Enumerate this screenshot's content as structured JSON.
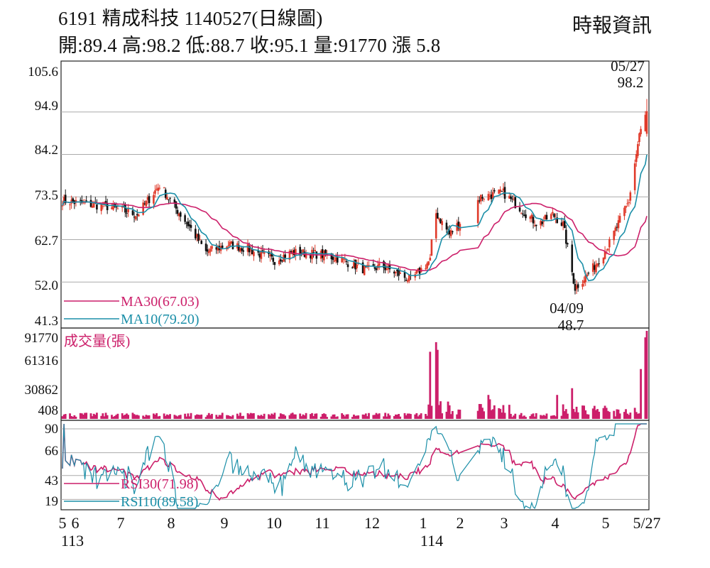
{
  "header": {
    "title": "6191  精成科技 1140527(日線圖)",
    "stats": "開:89.4 高:98.2 低:88.7 收:95.1 量:91770 漲 5.8",
    "brand": "時報資訊"
  },
  "price_panel": {
    "y_ticks": [
      "105.6",
      "94.9",
      "84.2",
      "73.5",
      "62.7",
      "52.0",
      "41.3"
    ],
    "high_annotation": {
      "date": "05/27",
      "value": "98.2"
    },
    "low_annotation": {
      "date": "04/09",
      "value": "48.7"
    },
    "legend": {
      "ma30": "MA30(67.03)",
      "ma10": "MA10(79.20)"
    }
  },
  "volume_panel": {
    "title": "成交量(張)",
    "y_ticks": [
      "91770",
      "61316",
      "30862",
      "408"
    ]
  },
  "rsi_panel": {
    "y_ticks": [
      "90",
      "66",
      "43",
      "19"
    ],
    "legend": {
      "rsi30": "RSI30(71.98)",
      "rsi10": "RSI10(89.58)"
    }
  },
  "x_axis": {
    "months": [
      "5",
      "6",
      "7",
      "8",
      "9",
      "10",
      "11",
      "12",
      "1",
      "2",
      "3",
      "4",
      "5",
      "5/27"
    ],
    "years": [
      "113",
      "114"
    ]
  },
  "colors": {
    "up_candle": "#e03a2a",
    "down_candle": "#111111",
    "ma30_line": "#cc1f6a",
    "ma10_line": "#1b8fa8",
    "volume_bar": "#cc1f6a",
    "rsi30_line": "#cc1f6a",
    "rsi10_line": "#1b8fa8",
    "grid": "#aaaaaa"
  },
  "chart_data": [
    {
      "type": "candlestick",
      "title": "6191  精成科技 1140527(日線圖)",
      "ylim": [
        41.3,
        105.6
      ],
      "close_profile": [
        [
          "113/05",
          72.5
        ],
        [
          "113/06",
          71.0
        ],
        [
          "113/06/20",
          69.0
        ],
        [
          "113/07/05",
          76.5
        ],
        [
          "113/07/15",
          71.0
        ],
        [
          "113/07/25",
          66.0
        ],
        [
          "113/08/05",
          59.5
        ],
        [
          "113/08/20",
          61.5
        ],
        [
          "113/09",
          60.5
        ],
        [
          "113/09/20",
          57.5
        ],
        [
          "113/10",
          59.5
        ],
        [
          "113/10/20",
          59.0
        ],
        [
          "113/11",
          58.0
        ],
        [
          "113/11/20",
          55.0
        ],
        [
          "113/12",
          56.0
        ],
        [
          "113/12/20",
          52.5
        ],
        [
          "114/01/02",
          57.5
        ],
        [
          "114/01/05",
          70.0
        ],
        [
          "114/01/15",
          64.0
        ],
        [
          "114/02/05",
          73.5
        ],
        [
          "114/02/20",
          74.5
        ],
        [
          "114/03/05",
          70.0
        ],
        [
          "114/03/15",
          66.5
        ],
        [
          "114/03/25",
          69.0
        ],
        [
          "114/04/01",
          66.5
        ],
        [
          "114/04/09",
          50.5
        ],
        [
          "114/04/20",
          55.0
        ],
        [
          "114/05/01",
          61.0
        ],
        [
          "114/05/15",
          72.5
        ],
        [
          "114/05/22",
          89.0
        ],
        [
          "114/05/27",
          95.1
        ]
      ],
      "last_bar": {
        "date": "114/05/27",
        "open": 89.4,
        "high": 98.2,
        "low": 88.7,
        "close": 95.1,
        "volume": 91770,
        "change": 5.8
      },
      "annotations": [
        {
          "date": "05/27",
          "value": 98.2
        },
        {
          "date": "04/09",
          "value": 48.7
        }
      ],
      "series": [
        {
          "name": "MA30(67.03)",
          "last": 67.03
        },
        {
          "name": "MA10(79.20)",
          "last": 79.2
        }
      ]
    },
    {
      "type": "bar",
      "title": "成交量(張)",
      "y_ticks": [
        408,
        30862,
        61316,
        91770
      ],
      "spikes": [
        [
          "114/01/02",
          70000
        ],
        [
          "114/01/06",
          80000
        ],
        [
          "114/01/07",
          72000
        ],
        [
          "114/02/10",
          25000
        ],
        [
          "114/03/28",
          25000
        ],
        [
          "114/04/07",
          32000
        ],
        [
          "114/05/23",
          52000
        ],
        [
          "114/05/26",
          85000
        ],
        [
          "114/05/27",
          91770
        ]
      ]
    },
    {
      "type": "line",
      "ylim": [
        10,
        95
      ],
      "y_ticks": [
        19,
        43,
        66,
        90
      ],
      "series": [
        {
          "name": "RSI30(71.98)",
          "last": 71.98
        },
        {
          "name": "RSI10(89.58)",
          "last": 89.58
        }
      ]
    }
  ]
}
